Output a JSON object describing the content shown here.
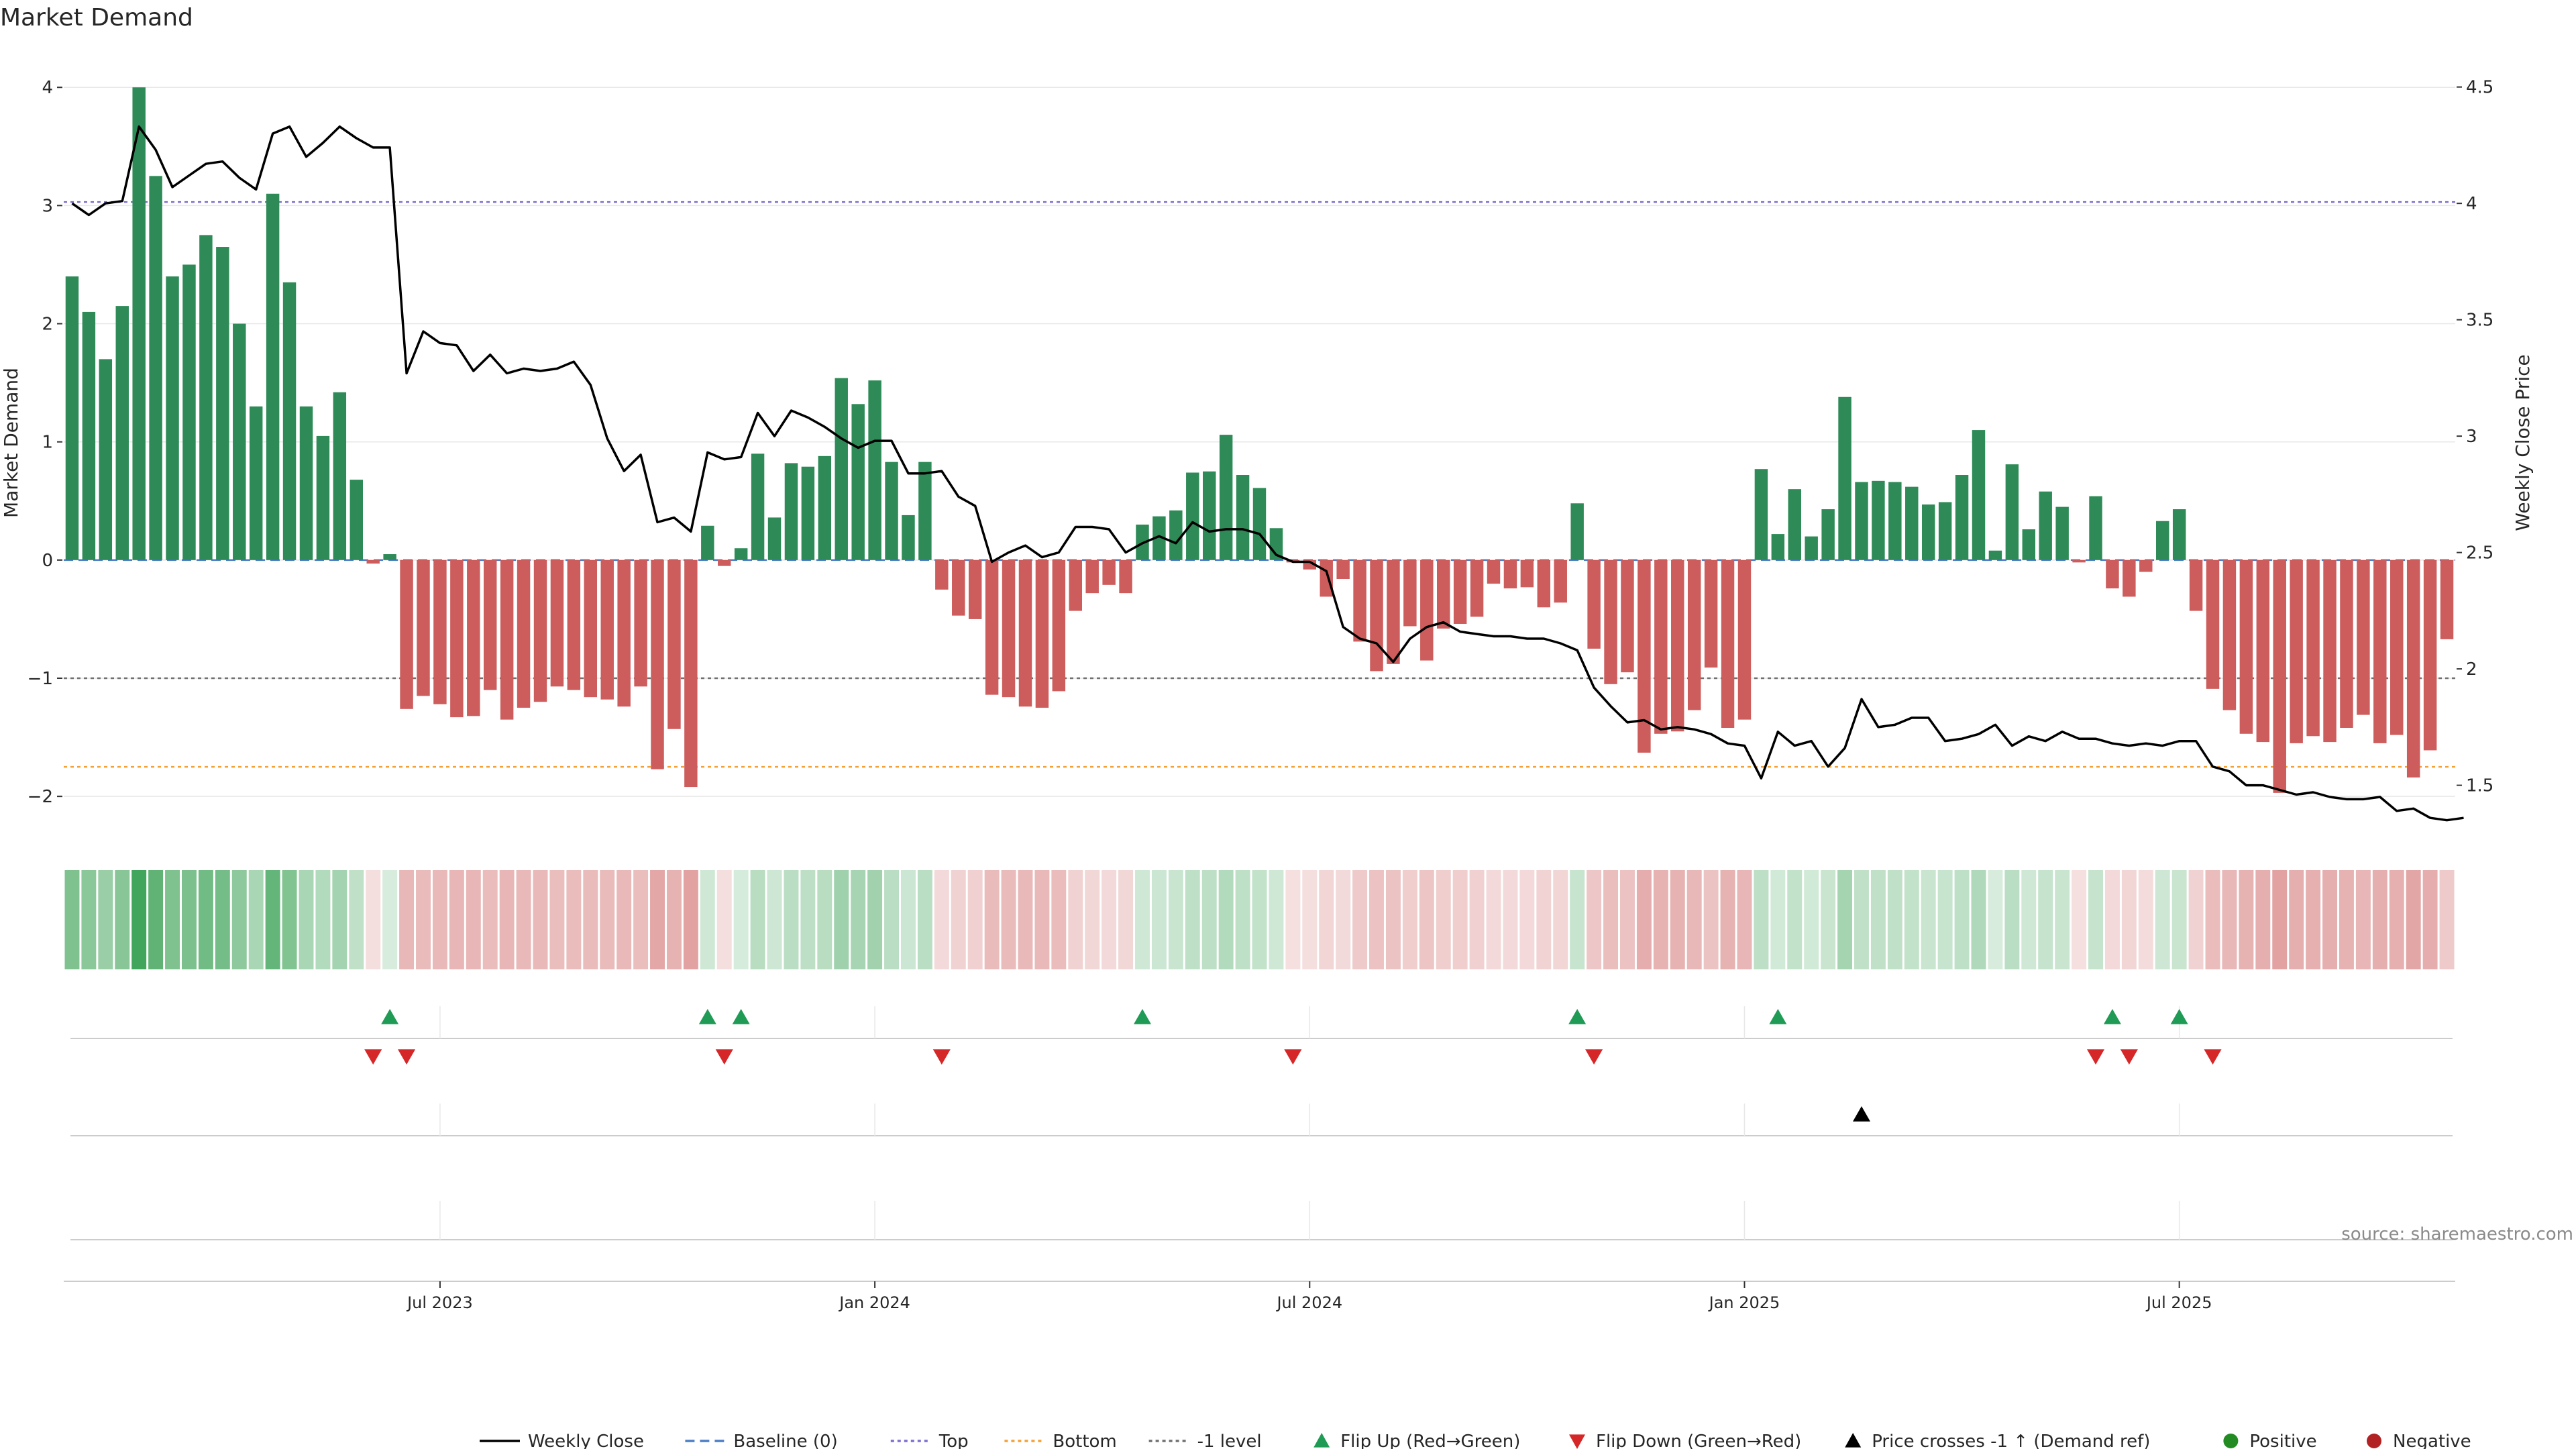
{
  "chart_data": {
    "type": "bar",
    "title": "Market Demand",
    "ylabel": "Market Demand",
    "y2label": "Weekly Close Price",
    "ylim": [
      -2.3,
      4.2
    ],
    "y2lim": [
      1.3,
      4.6
    ],
    "yticks": [
      4,
      3,
      2,
      1,
      0,
      -1,
      -2
    ],
    "ytick_labels": [
      "4",
      "3",
      "2",
      "1",
      "0",
      "−1",
      "−2"
    ],
    "y2ticks": [
      4.5,
      4,
      3.5,
      3,
      2.5,
      2,
      1.5
    ],
    "y2tick_labels": [
      "4.5",
      "4",
      "3.5",
      "3",
      "2.5",
      "2",
      "1.5"
    ],
    "x_start_week": 0,
    "x_end_week": 143,
    "xticks": [
      {
        "week": 22,
        "label": "Jul 2023"
      },
      {
        "week": 48,
        "label": "Jan 2024"
      },
      {
        "week": 74,
        "label": "Jul 2024"
      },
      {
        "week": 100,
        "label": "Jan 2025"
      },
      {
        "week": 126,
        "label": "Jul 2025"
      }
    ],
    "ref_lines": [
      {
        "name": "Top",
        "value": 3.03,
        "color": "#7b6fd0"
      },
      {
        "name": "-1 level",
        "value": -1,
        "color": "#707070"
      },
      {
        "name": "Bottom",
        "value": -1.75,
        "color": "#f5a034"
      },
      {
        "name": "Baseline (0)",
        "value": 0,
        "color": "#4c7ec7"
      }
    ],
    "demand": [
      2.4,
      2.1,
      1.7,
      2.15,
      4.0,
      3.25,
      2.4,
      2.5,
      2.75,
      2.65,
      2.0,
      1.3,
      3.1,
      2.35,
      1.3,
      1.05,
      1.42,
      0.68,
      -0.03,
      0.05,
      -1.26,
      -1.15,
      -1.22,
      -1.33,
      -1.32,
      -1.1,
      -1.35,
      -1.25,
      -1.2,
      -1.07,
      -1.1,
      -1.16,
      -1.18,
      -1.24,
      -1.07,
      -1.77,
      -1.43,
      -1.92,
      0.29,
      -0.05,
      0.1,
      0.9,
      0.36,
      0.82,
      0.79,
      0.88,
      1.54,
      1.32,
      1.52,
      0.83,
      0.38,
      0.83,
      -0.25,
      -0.47,
      -0.5,
      -1.14,
      -1.16,
      -1.24,
      -1.25,
      -1.11,
      -0.43,
      -0.28,
      -0.21,
      -0.28,
      0.3,
      0.37,
      0.42,
      0.74,
      0.75,
      1.06,
      0.72,
      0.61,
      0.27,
      -0.02,
      -0.08,
      -0.31,
      -0.16,
      -0.69,
      -0.94,
      -0.88,
      -0.56,
      -0.85,
      -0.58,
      -0.54,
      -0.48,
      -0.2,
      -0.24,
      -0.23,
      -0.4,
      -0.36,
      0.48,
      -0.75,
      -1.05,
      -0.95,
      -1.63,
      -1.47,
      -1.45,
      -1.27,
      -0.91,
      -1.42,
      -1.35,
      0.77,
      0.22,
      0.6,
      0.2,
      0.43,
      1.38,
      0.66,
      0.67,
      0.66,
      0.62,
      0.47,
      0.49,
      0.72,
      1.1,
      0.08,
      0.81,
      0.26,
      0.58,
      0.45,
      -0.02,
      0.54,
      -0.24,
      -0.31,
      -0.1,
      0.33,
      0.43,
      -0.43,
      -1.09,
      -1.27,
      -1.47,
      -1.54,
      -1.97,
      -1.55,
      -1.49,
      -1.54,
      -1.42,
      -1.31,
      -1.55,
      -1.48,
      -1.84,
      -1.61,
      -0.67
    ],
    "weekly_close": [
      4.0,
      3.95,
      4.0,
      4.01,
      4.33,
      4.23,
      4.07,
      4.12,
      4.17,
      4.18,
      4.11,
      4.06,
      4.3,
      4.33,
      4.2,
      4.26,
      4.33,
      4.28,
      4.24,
      4.24,
      3.27,
      3.45,
      3.4,
      3.39,
      3.28,
      3.35,
      3.27,
      3.29,
      3.28,
      3.29,
      3.32,
      3.22,
      2.99,
      2.85,
      2.92,
      2.63,
      2.65,
      2.59,
      2.93,
      2.9,
      2.91,
      3.1,
      3.0,
      3.11,
      3.08,
      3.04,
      2.99,
      2.95,
      2.98,
      2.98,
      2.84,
      2.84,
      2.85,
      2.74,
      2.7,
      2.46,
      2.5,
      2.53,
      2.48,
      2.5,
      2.61,
      2.61,
      2.6,
      2.5,
      2.54,
      2.57,
      2.54,
      2.63,
      2.59,
      2.6,
      2.6,
      2.58,
      2.49,
      2.46,
      2.46,
      2.42,
      2.18,
      2.13,
      2.11,
      2.03,
      2.13,
      2.18,
      2.2,
      2.16,
      2.15,
      2.14,
      2.14,
      2.13,
      2.13,
      2.11,
      2.08,
      1.92,
      1.84,
      1.77,
      1.78,
      1.74,
      1.75,
      1.74,
      1.72,
      1.68,
      1.67,
      1.53,
      1.73,
      1.67,
      1.69,
      1.58,
      1.66,
      1.87,
      1.75,
      1.76,
      1.79,
      1.79,
      1.69,
      1.7,
      1.72,
      1.76,
      1.67,
      1.71,
      1.69,
      1.73,
      1.7,
      1.7,
      1.68,
      1.67,
      1.68,
      1.67,
      1.69,
      1.69,
      1.58,
      1.56,
      1.5,
      1.5,
      1.48,
      1.46,
      1.47,
      1.45,
      1.44,
      1.44,
      1.45,
      1.39,
      1.4,
      1.36,
      1.35,
      1.36
    ],
    "flip_up_weeks": [
      19,
      38,
      40,
      64,
      90,
      102,
      122,
      126
    ],
    "flip_down_weeks": [
      18,
      20,
      39,
      52,
      73,
      91,
      121,
      123,
      128
    ],
    "price_cross_weeks": [
      107
    ],
    "colors": {
      "positive_bar": "#2e8b57",
      "negative_bar": "#cd5c5c",
      "heat_green": "#2e9b4a",
      "heat_red": "#c85050",
      "flip_up": "#1f9b55",
      "flip_down": "#d62728",
      "price_cross": "#000000",
      "price_line": "#000000",
      "positive_dot": "#228b22",
      "negative_dot": "#b22222"
    },
    "legend": [
      {
        "label": "Weekly Close",
        "kind": "line",
        "color": "#000000"
      },
      {
        "label": "Baseline (0)",
        "kind": "dash",
        "color": "#4c7ec7"
      },
      {
        "label": "Top",
        "kind": "dot",
        "color": "#7b6fd0"
      },
      {
        "label": "Bottom",
        "kind": "dot",
        "color": "#f5a034"
      },
      {
        "label": "-1 level",
        "kind": "dot",
        "color": "#707070"
      },
      {
        "label": "Flip Up (Red→Green)",
        "kind": "tri-up",
        "color": "#1f9b55"
      },
      {
        "label": "Flip Down (Green→Red)",
        "kind": "tri-down",
        "color": "#d62728"
      },
      {
        "label": "Price crosses -1 ↑ (Demand ref)",
        "kind": "tri-up",
        "color": "#000000"
      },
      {
        "label": "Positive",
        "kind": "circle",
        "color": "#228b22"
      },
      {
        "label": "Negative",
        "kind": "circle",
        "color": "#b22222"
      }
    ],
    "source": "source: sharemaestro.com"
  }
}
